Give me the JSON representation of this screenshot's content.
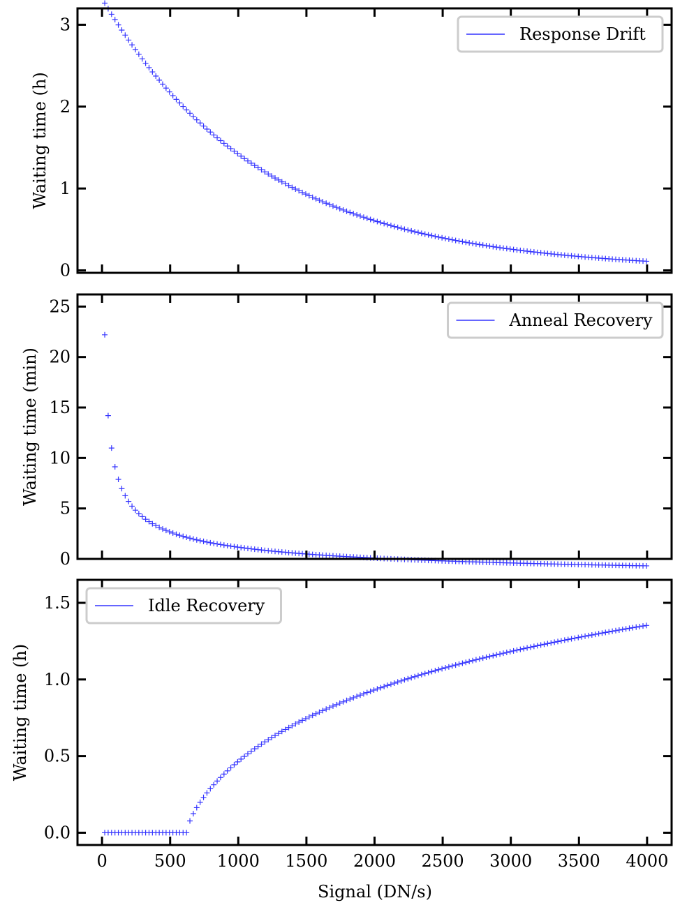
{
  "figure": {
    "xlabel": "Signal (DN/s)"
  },
  "chart_data": [
    {
      "type": "scatter",
      "marker": "+",
      "color": "#3333ff",
      "ylabel": "Waiting time (h)",
      "xlim": [
        -180,
        4180
      ],
      "ylim": [
        -0.03,
        3.2
      ],
      "xticks": [
        0,
        500,
        1000,
        1500,
        2000,
        2500,
        3000,
        3500,
        4000
      ],
      "yticks": [
        0,
        1,
        2,
        3
      ],
      "ytick_labels": [
        "0",
        "1",
        "2",
        "3"
      ],
      "legend_position": "top-right",
      "series": [
        {
          "name": "Response Drift",
          "model": "decay",
          "x_start": 20,
          "x_end": 4000,
          "x_step": 25,
          "params": {
            "a": 3.32,
            "k": 0.00085
          }
        }
      ]
    },
    {
      "type": "scatter",
      "marker": "+",
      "color": "#3333ff",
      "ylabel": "Waiting time (min)",
      "xlim": [
        -180,
        4180
      ],
      "ylim": [
        0,
        26.2
      ],
      "xticks": [
        0,
        500,
        1000,
        1500,
        2000,
        2500,
        3000,
        3500,
        4000
      ],
      "yticks": [
        0,
        5,
        10,
        15,
        20,
        25
      ],
      "ytick_labels": [
        "0",
        "5",
        "10",
        "15",
        "20",
        "25"
      ],
      "legend_position": "top-right",
      "series": [
        {
          "name": "Anneal Recovery",
          "model": "power_decay",
          "x_start": 20,
          "x_end": 4000,
          "x_step": 25,
          "params": {
            "c": 104.5,
            "p": 0.4794,
            "m": 2.65
          }
        }
      ]
    },
    {
      "type": "scatter",
      "marker": "+",
      "color": "#3333ff",
      "ylabel": "Waiting time (h)",
      "xlim": [
        -180,
        4180
      ],
      "ylim": [
        -0.08,
        1.65
      ],
      "xticks": [
        0,
        500,
        1000,
        1500,
        2000,
        2500,
        3000,
        3500,
        4000
      ],
      "yticks": [
        0,
        0.5,
        1.0,
        1.5
      ],
      "ytick_labels": [
        "0.0",
        "0.5",
        "1.0",
        "1.5"
      ],
      "legend_position": "top-left",
      "series": [
        {
          "name": "Idle Recovery",
          "model": "threshold_growth",
          "x_start": 20,
          "x_end": 4000,
          "x_step": 25,
          "params": {
            "x0": 620,
            "k": 1.03,
            "r": 1000,
            "p": 0.7
          }
        }
      ]
    }
  ]
}
